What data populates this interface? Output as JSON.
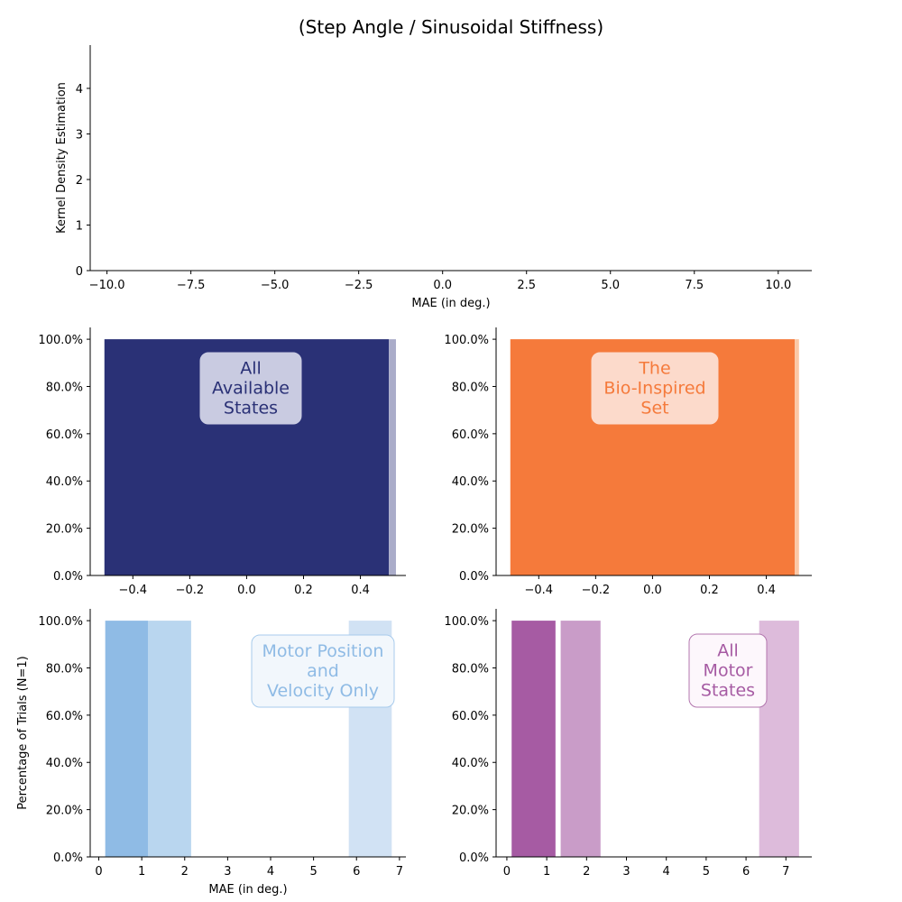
{
  "figure": {
    "title": "(Step Angle / Sinusoidal Stiffness)"
  },
  "chart_data": [
    {
      "id": "kde",
      "type": "line",
      "title": "",
      "xlabel": "MAE (in deg.)",
      "ylabel": "Kernel Density Estimation",
      "xlim": [
        -10.5,
        11
      ],
      "ylim": [
        0,
        4.95
      ],
      "xticks": [
        -10.0,
        -7.5,
        -5.0,
        -2.5,
        0.0,
        2.5,
        5.0,
        7.5,
        10.0
      ],
      "xtick_labels": [
        "−10.0",
        "−7.5",
        "−5.0",
        "−2.5",
        "0.0",
        "2.5",
        "5.0",
        "7.5",
        "10.0"
      ],
      "yticks": [
        0,
        1,
        2,
        3,
        4
      ],
      "ytick_labels": [
        "0",
        "1",
        "2",
        "3",
        "4"
      ],
      "series": [],
      "grid": false
    },
    {
      "id": "all-available",
      "type": "bar",
      "title": "",
      "badge": "All\nAvailable\nStates",
      "badge_color": "#2a3176",
      "xlabel": "",
      "ylabel": "",
      "xlim": [
        -0.55,
        0.56
      ],
      "ylim": [
        0,
        105
      ],
      "xticks": [
        -0.4,
        -0.2,
        0.0,
        0.2,
        0.4
      ],
      "xtick_labels": [
        "−0.4",
        "−0.2",
        "0.0",
        "0.2",
        "0.4"
      ],
      "yticks": [
        0,
        20,
        40,
        60,
        80,
        100
      ],
      "ytick_labels": [
        "0.0%",
        "20.0%",
        "40.0%",
        "60.0%",
        "80.0%",
        "100.0%"
      ],
      "bars": [
        {
          "x0": -0.5,
          "x1": 0.5,
          "value": 100,
          "color": "#2a3176"
        },
        {
          "x0": 0.5,
          "x1": 0.525,
          "value": 100,
          "color": "#aaacc9"
        }
      ],
      "grid": false
    },
    {
      "id": "bio-inspired",
      "type": "bar",
      "title": "",
      "badge": "The\nBio-Inspired\nSet",
      "badge_color": "#f57a3b",
      "xlabel": "",
      "ylabel": "",
      "xlim": [
        -0.55,
        0.56
      ],
      "ylim": [
        0,
        105
      ],
      "xticks": [
        -0.4,
        -0.2,
        0.0,
        0.2,
        0.4
      ],
      "xtick_labels": [
        "−0.4",
        "−0.2",
        "0.0",
        "0.2",
        "0.4"
      ],
      "yticks": [
        0,
        20,
        40,
        60,
        80,
        100
      ],
      "ytick_labels": [
        "0.0%",
        "20.0%",
        "40.0%",
        "60.0%",
        "80.0%",
        "100.0%"
      ],
      "bars": [
        {
          "x0": -0.5,
          "x1": 0.5,
          "value": 100,
          "color": "#f57a3b"
        },
        {
          "x0": 0.5,
          "x1": 0.515,
          "value": 100,
          "color": "#fbc8a6"
        }
      ],
      "grid": false
    },
    {
      "id": "motor-pos-vel",
      "type": "bar",
      "title": "",
      "badge": "Motor Position\nand\nVelocity Only",
      "badge_color": "#8fbbe5",
      "xlabel": "MAE (in deg.)",
      "ylabel": "Percentage of Trials (N=1)",
      "xlim": [
        -0.2,
        7.15
      ],
      "ylim": [
        0,
        105
      ],
      "xticks": [
        0,
        1,
        2,
        3,
        4,
        5,
        6,
        7
      ],
      "xtick_labels": [
        "0",
        "1",
        "2",
        "3",
        "4",
        "5",
        "6",
        "7"
      ],
      "yticks": [
        0,
        20,
        40,
        60,
        80,
        100
      ],
      "ytick_labels": [
        "0.0%",
        "20.0%",
        "40.0%",
        "60.0%",
        "80.0%",
        "100.0%"
      ],
      "bars": [
        {
          "x0": 0.15,
          "x1": 1.15,
          "value": 100,
          "color": "#8fbbe5"
        },
        {
          "x0": 1.15,
          "x1": 2.15,
          "value": 100,
          "color": "#b9d6ef"
        },
        {
          "x0": 5.82,
          "x1": 6.82,
          "value": 100,
          "color": "#d1e2f4"
        }
      ],
      "grid": false
    },
    {
      "id": "all-motor",
      "type": "bar",
      "title": "",
      "badge": "All\nMotor\nStates",
      "badge_color": "#a65ba3",
      "xlabel": "",
      "ylabel": "",
      "xlim": [
        -0.27,
        7.65
      ],
      "ylim": [
        0,
        105
      ],
      "xticks": [
        0,
        1,
        2,
        3,
        4,
        5,
        6,
        7
      ],
      "xtick_labels": [
        "0",
        "1",
        "2",
        "3",
        "4",
        "5",
        "6",
        "7"
      ],
      "yticks": [
        0,
        20,
        40,
        60,
        80,
        100
      ],
      "ytick_labels": [
        "0.0%",
        "20.0%",
        "40.0%",
        "60.0%",
        "80.0%",
        "100.0%"
      ],
      "bars": [
        {
          "x0": 0.12,
          "x1": 1.22,
          "value": 100,
          "color": "#a65ba3"
        },
        {
          "x0": 1.35,
          "x1": 2.35,
          "value": 100,
          "color": "#c99cc8"
        },
        {
          "x0": 6.33,
          "x1": 7.33,
          "value": 100,
          "color": "#ddbbdb"
        }
      ],
      "grid": false
    }
  ]
}
